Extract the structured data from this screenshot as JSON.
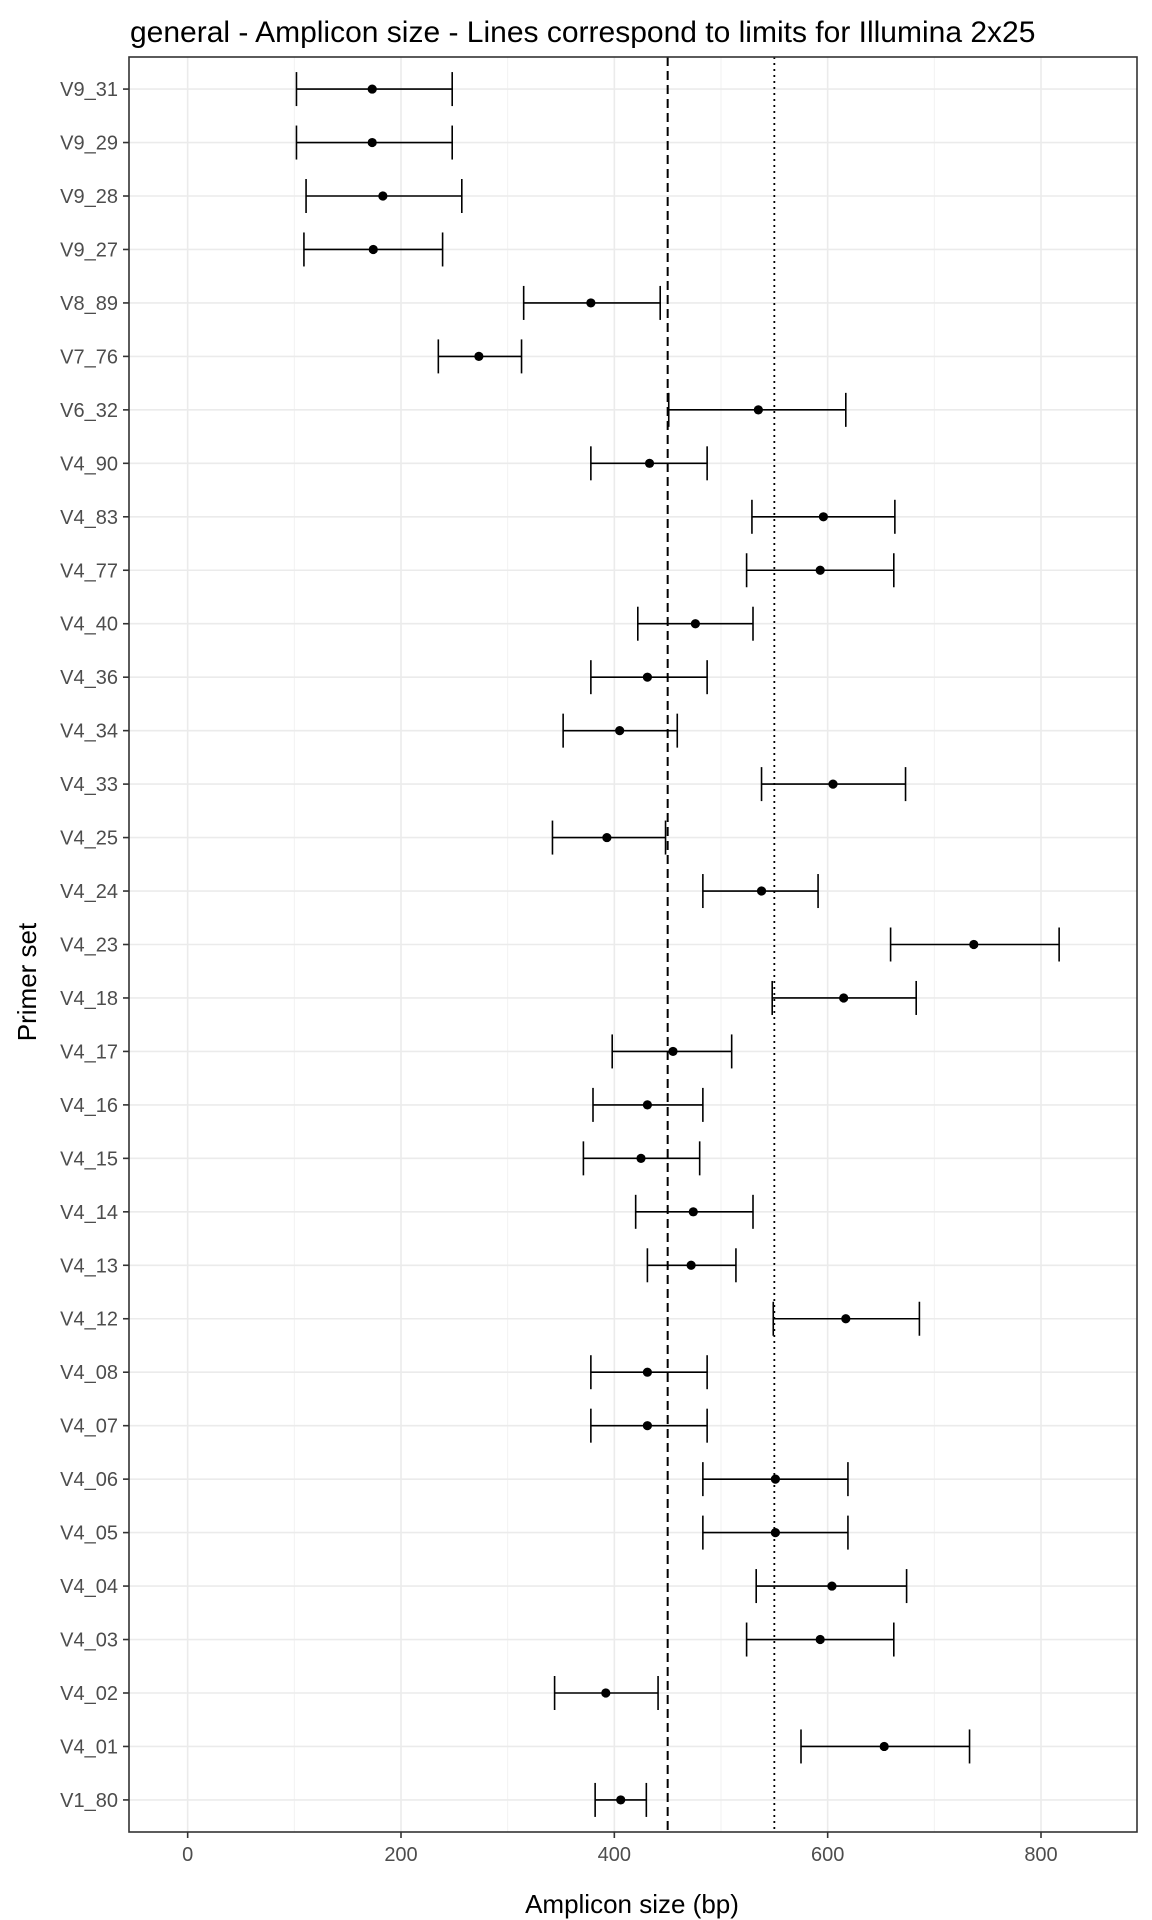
{
  "chart_data": {
    "type": "errorbar",
    "title": "general - Amplicon size - Lines correspond to limits for Illumina 2x25",
    "xlabel": "Amplicon size (bp)",
    "ylabel": "Primer set",
    "xlim": [
      -55,
      890
    ],
    "xticks": [
      0,
      200,
      400,
      600,
      800
    ],
    "grid": true,
    "legend": "none",
    "reference_lines": [
      {
        "value": 450,
        "style": "dashed"
      },
      {
        "value": 550,
        "style": "dotted"
      }
    ],
    "categories": [
      "V9_31",
      "V9_29",
      "V9_28",
      "V9_27",
      "V8_89",
      "V7_76",
      "V6_32",
      "V4_90",
      "V4_83",
      "V4_77",
      "V4_40",
      "V4_36",
      "V4_34",
      "V4_33",
      "V4_25",
      "V4_24",
      "V4_23",
      "V4_18",
      "V4_17",
      "V4_16",
      "V4_15",
      "V4_14",
      "V4_13",
      "V4_12",
      "V4_08",
      "V4_07",
      "V4_06",
      "V4_05",
      "V4_04",
      "V4_03",
      "V4_02",
      "V4_01",
      "V1_80"
    ],
    "series": [
      {
        "values": [
          {
            "mean": 173,
            "min": 102,
            "max": 248
          },
          {
            "mean": 173,
            "min": 102,
            "max": 248
          },
          {
            "mean": 183,
            "min": 111,
            "max": 257
          },
          {
            "mean": 174,
            "min": 109,
            "max": 239
          },
          {
            "mean": 378,
            "min": 315,
            "max": 443
          },
          {
            "mean": 273,
            "min": 235,
            "max": 313
          },
          {
            "mean": 535,
            "min": 451,
            "max": 617
          },
          {
            "mean": 433,
            "min": 378,
            "max": 487
          },
          {
            "mean": 596,
            "min": 529,
            "max": 663
          },
          {
            "mean": 593,
            "min": 524,
            "max": 662
          },
          {
            "mean": 476,
            "min": 422,
            "max": 530
          },
          {
            "mean": 431,
            "min": 378,
            "max": 487
          },
          {
            "mean": 405,
            "min": 352,
            "max": 459
          },
          {
            "mean": 605,
            "min": 538,
            "max": 673
          },
          {
            "mean": 393,
            "min": 342,
            "max": 448
          },
          {
            "mean": 538,
            "min": 483,
            "max": 591
          },
          {
            "mean": 737,
            "min": 659,
            "max": 817
          },
          {
            "mean": 615,
            "min": 548,
            "max": 683
          },
          {
            "mean": 455,
            "min": 398,
            "max": 510
          },
          {
            "mean": 431,
            "min": 380,
            "max": 483
          },
          {
            "mean": 425,
            "min": 371,
            "max": 480
          },
          {
            "mean": 474,
            "min": 420,
            "max": 530
          },
          {
            "mean": 472,
            "min": 431,
            "max": 514
          },
          {
            "mean": 617,
            "min": 549,
            "max": 686
          },
          {
            "mean": 431,
            "min": 378,
            "max": 487
          },
          {
            "mean": 431,
            "min": 378,
            "max": 487
          },
          {
            "mean": 551,
            "min": 483,
            "max": 619
          },
          {
            "mean": 551,
            "min": 483,
            "max": 619
          },
          {
            "mean": 604,
            "min": 533,
            "max": 674
          },
          {
            "mean": 593,
            "min": 524,
            "max": 662
          },
          {
            "mean": 392,
            "min": 344,
            "max": 441
          },
          {
            "mean": 653,
            "min": 575,
            "max": 733
          },
          {
            "mean": 406,
            "min": 382,
            "max": 430
          }
        ]
      }
    ]
  }
}
